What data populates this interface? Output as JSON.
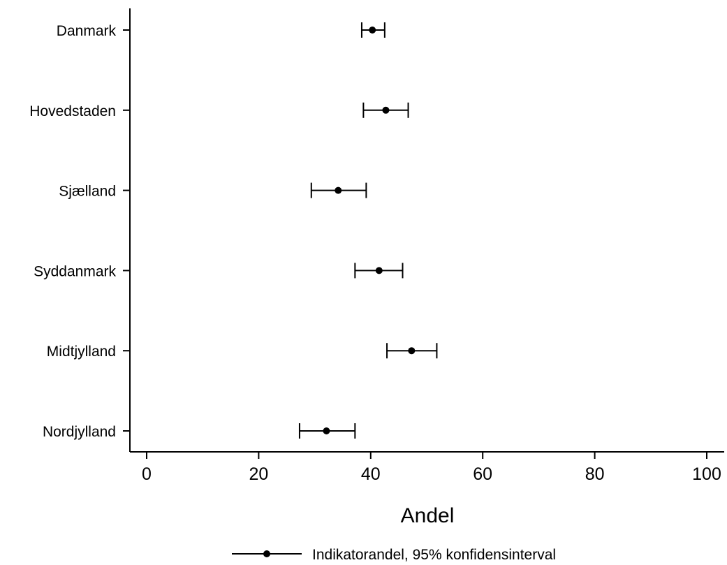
{
  "chart_data": {
    "type": "scatter",
    "subtype": "dot-and-whisker",
    "title": "",
    "xlabel": "Andel",
    "ylabel": "",
    "xlim": [
      0,
      100
    ],
    "xticks": [
      0,
      20,
      40,
      60,
      80,
      100
    ],
    "categories": [
      "Danmark",
      "Hovedstaden",
      "Sjælland",
      "Syddanmark",
      "Midtjylland",
      "Nordjylland"
    ],
    "series": [
      {
        "name": "Indikatorandel, 95% konfidensinterval",
        "values": [
          40.3,
          42.7,
          34.2,
          41.5,
          47.3,
          32.1
        ],
        "ci_lower": [
          38.4,
          38.7,
          29.4,
          37.2,
          42.9,
          27.3
        ],
        "ci_upper": [
          42.5,
          46.7,
          39.2,
          45.7,
          51.8,
          37.2
        ]
      }
    ],
    "grid": false,
    "legend_position": "bottom",
    "colors": {
      "marker": "#000000",
      "line": "#000000",
      "background": "#ffffff"
    }
  }
}
